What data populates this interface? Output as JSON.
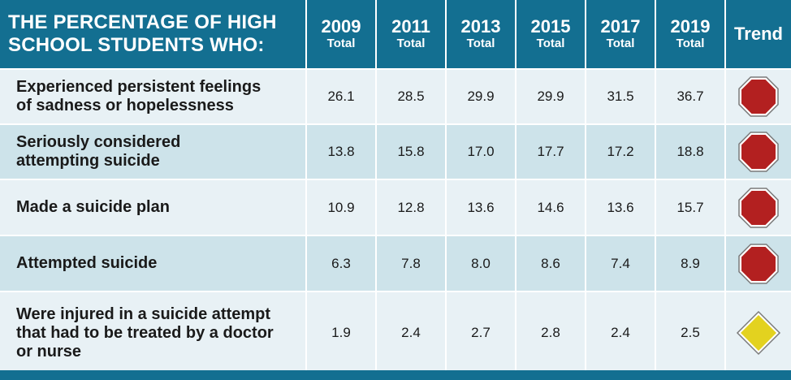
{
  "header": {
    "title_line1": "THE PERCENTAGE OF HIGH",
    "title_line2": "SCHOOL STUDENTS WHO:",
    "years": [
      "2009",
      "2011",
      "2013",
      "2015",
      "2017",
      "2019"
    ],
    "year_sub": "Total",
    "trend": "Trend"
  },
  "rows": [
    {
      "label_lines": [
        "Experienced persistent feelings",
        "of sadness or hopelessness"
      ],
      "values": [
        "26.1",
        "28.5",
        "29.9",
        "29.9",
        "31.5",
        "36.7"
      ],
      "trend_icon": "stop-sign-icon"
    },
    {
      "label_lines": [
        "Seriously considered",
        "attempting suicide"
      ],
      "values": [
        "13.8",
        "15.8",
        "17.0",
        "17.7",
        "17.2",
        "18.8"
      ],
      "trend_icon": "stop-sign-icon"
    },
    {
      "label_lines": [
        "Made a suicide plan"
      ],
      "values": [
        "10.9",
        "12.8",
        "13.6",
        "14.6",
        "13.6",
        "15.7"
      ],
      "trend_icon": "stop-sign-icon"
    },
    {
      "label_lines": [
        "Attempted suicide"
      ],
      "values": [
        "6.3",
        "7.8",
        "8.0",
        "8.6",
        "7.4",
        "8.9"
      ],
      "trend_icon": "stop-sign-icon"
    },
    {
      "label_lines": [
        "Were injured in a suicide attempt",
        "that had to be treated by a doctor",
        "or nurse"
      ],
      "values": [
        "1.9",
        "2.4",
        "2.7",
        "2.8",
        "2.4",
        "2.5"
      ],
      "trend_icon": "yellow-diamond-icon"
    }
  ],
  "colors": {
    "header_bg": "#136f91",
    "row_light": "#e8f1f5",
    "row_dark": "#cde3ea",
    "stop_red": "#b32020",
    "diamond_yellow": "#e3d21f"
  },
  "chart_data": {
    "type": "table",
    "title": "THE PERCENTAGE OF HIGH SCHOOL STUDENTS WHO:",
    "columns": [
      "2009 Total",
      "2011 Total",
      "2013 Total",
      "2015 Total",
      "2017 Total",
      "2019 Total",
      "Trend"
    ],
    "categories": [
      "2009",
      "2011",
      "2013",
      "2015",
      "2017",
      "2019"
    ],
    "series": [
      {
        "name": "Experienced persistent feelings of sadness or hopelessness",
        "values": [
          26.1,
          28.5,
          29.9,
          29.9,
          31.5,
          36.7
        ],
        "trend": "stop-sign-icon"
      },
      {
        "name": "Seriously considered attempting suicide",
        "values": [
          13.8,
          15.8,
          17.0,
          17.7,
          17.2,
          18.8
        ],
        "trend": "stop-sign-icon"
      },
      {
        "name": "Made a suicide plan",
        "values": [
          10.9,
          12.8,
          13.6,
          14.6,
          13.6,
          15.7
        ],
        "trend": "stop-sign-icon"
      },
      {
        "name": "Attempted suicide",
        "values": [
          6.3,
          7.8,
          8.0,
          8.6,
          7.4,
          8.9
        ],
        "trend": "stop-sign-icon"
      },
      {
        "name": "Were injured in a suicide attempt that had to be treated by a doctor or nurse",
        "values": [
          1.9,
          2.4,
          2.7,
          2.8,
          2.4,
          2.5
        ],
        "trend": "yellow-diamond-icon"
      }
    ]
  }
}
